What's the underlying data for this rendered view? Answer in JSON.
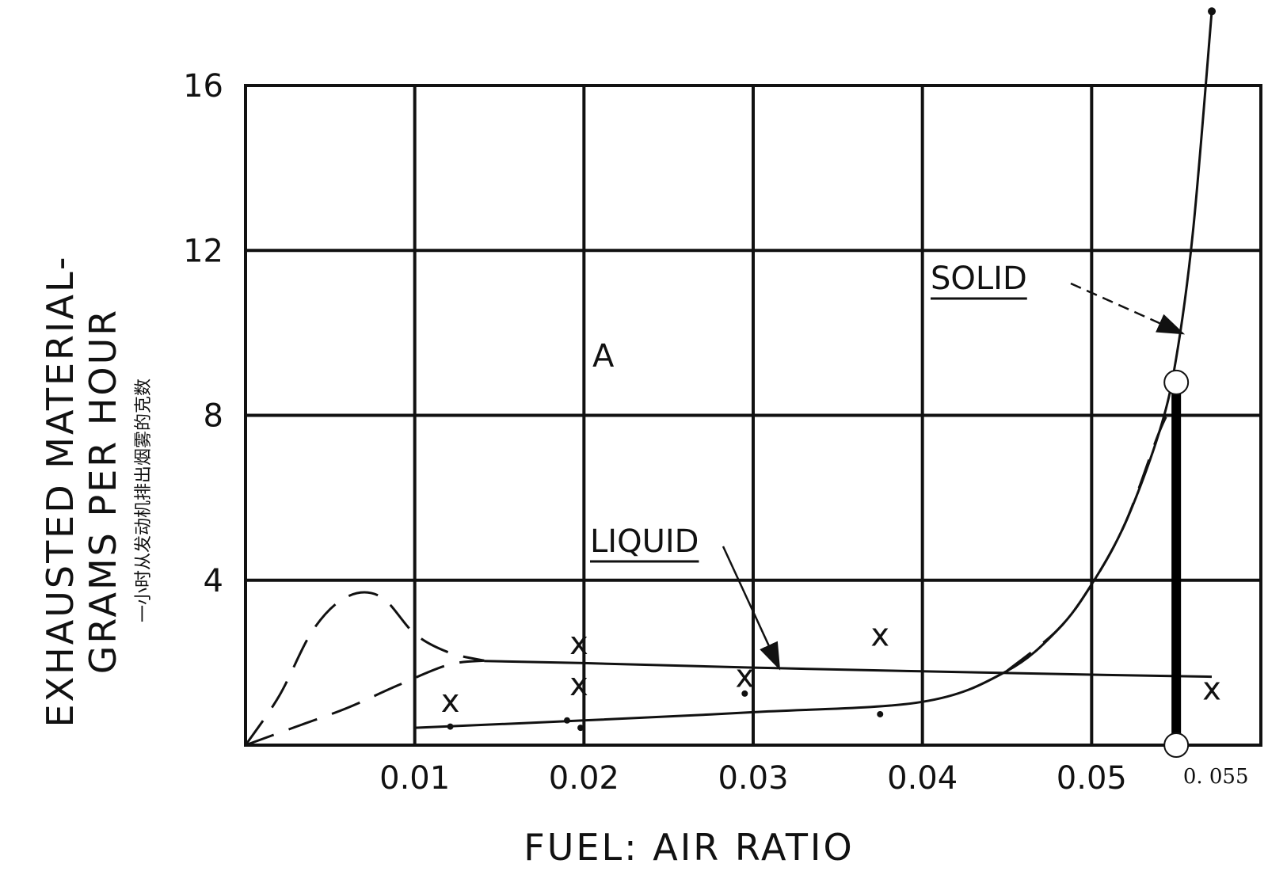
{
  "chart_data": {
    "type": "line",
    "xlabel": "FUEL: AIR RATIO",
    "ylabel_line1": "EXHAUSTED MATERIAL-",
    "ylabel_line2": "GRAMS PER HOUR",
    "ylabel_chinese": "一小时从发动机排出烟雾的克数",
    "xlim": [
      0.0,
      0.06
    ],
    "ylim": [
      0,
      16
    ],
    "x_ticks": [
      0.01,
      0.02,
      0.03,
      0.04,
      0.05
    ],
    "x_tick_labels": [
      "0.01",
      "0.02",
      "0.03",
      "0.04",
      "0.05"
    ],
    "y_ticks": [
      4,
      8,
      12,
      16
    ],
    "y_tick_labels": [
      "4",
      "8",
      "12",
      "16"
    ],
    "grid": true,
    "region_label": "A",
    "series": [
      {
        "name": "LIQUID",
        "style": "solid",
        "x": [
          0.0141,
          0.02,
          0.03,
          0.04,
          0.05,
          0.0571
        ],
        "y": [
          2.04,
          1.99,
          1.88,
          1.79,
          1.71,
          1.66
        ]
      },
      {
        "name": "SOLID",
        "style": "solid",
        "x": [
          0.01,
          0.02,
          0.03,
          0.04,
          0.045,
          0.048,
          0.05,
          0.052,
          0.054,
          0.055,
          0.056,
          0.0571
        ],
        "y": [
          0.42,
          0.6,
          0.8,
          1.05,
          1.8,
          2.8,
          3.9,
          5.4,
          7.6,
          9.4,
          12.5,
          17.8
        ]
      }
    ],
    "dashed_curves": [
      {
        "x": [
          0.0,
          0.002,
          0.004,
          0.006,
          0.008,
          0.01,
          0.012,
          0.0141
        ],
        "y": [
          0.0,
          1.2,
          2.8,
          3.6,
          3.6,
          2.7,
          2.25,
          2.05
        ]
      },
      {
        "x": [
          0.0,
          0.003,
          0.006,
          0.009,
          0.012,
          0.0141
        ],
        "y": [
          0.0,
          0.45,
          0.9,
          1.45,
          1.95,
          2.05
        ]
      },
      {
        "x": [
          0.045,
          0.048,
          0.05,
          0.052,
          0.054,
          0.055
        ],
        "y": [
          1.8,
          2.8,
          3.9,
          5.4,
          7.6,
          8.4
        ]
      }
    ],
    "points_x": [
      {
        "x": 0.0121,
        "y": 1.0
      },
      {
        "x": 0.0197,
        "y": 2.4
      },
      {
        "x": 0.0197,
        "y": 1.4
      },
      {
        "x": 0.0295,
        "y": 1.6
      },
      {
        "x": 0.0375,
        "y": 2.6
      },
      {
        "x": 0.0571,
        "y": 1.3
      }
    ],
    "points_dot": [
      {
        "x": 0.0121,
        "y": 0.45
      },
      {
        "x": 0.019,
        "y": 0.6
      },
      {
        "x": 0.0198,
        "y": 0.42
      },
      {
        "x": 0.0295,
        "y": 1.25
      },
      {
        "x": 0.0375,
        "y": 0.75
      }
    ],
    "marker": {
      "x": 0.055,
      "label": "0. 055",
      "y_low": 0.0,
      "y_high": 8.8
    },
    "annotations": [
      {
        "text": "SOLID",
        "target_x": 0.0553,
        "target_y": 10.0
      },
      {
        "text": "LIQUID",
        "target_x": 0.0315,
        "target_y": 1.9
      }
    ]
  }
}
